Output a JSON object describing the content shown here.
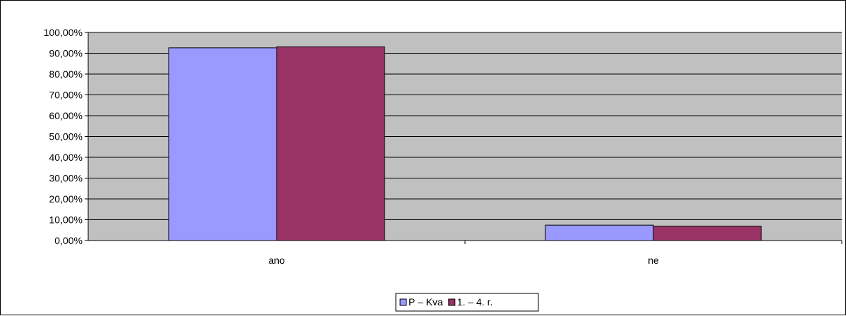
{
  "chart_data": {
    "type": "bar",
    "title": "",
    "xlabel": "",
    "ylabel": "",
    "categories": [
      "ano",
      "ne"
    ],
    "series": [
      {
        "name": "P – Kva",
        "values": [
          92.6,
          7.4
        ],
        "color": "#9999ff"
      },
      {
        "name": "1. – 4. r.",
        "values": [
          93.1,
          6.9
        ],
        "color": "#993366"
      }
    ],
    "ylim": [
      0,
      100
    ],
    "yticks": [
      0,
      10,
      20,
      30,
      40,
      50,
      60,
      70,
      80,
      90,
      100
    ],
    "ytick_labels": [
      "0,00%",
      "10,00%",
      "20,00%",
      "30,00%",
      "40,00%",
      "50,00%",
      "60,00%",
      "70,00%",
      "80,00%",
      "90,00%",
      "100,00%"
    ],
    "grid": true,
    "plot_background": "#c0c0c0",
    "legend_position": "bottom"
  }
}
